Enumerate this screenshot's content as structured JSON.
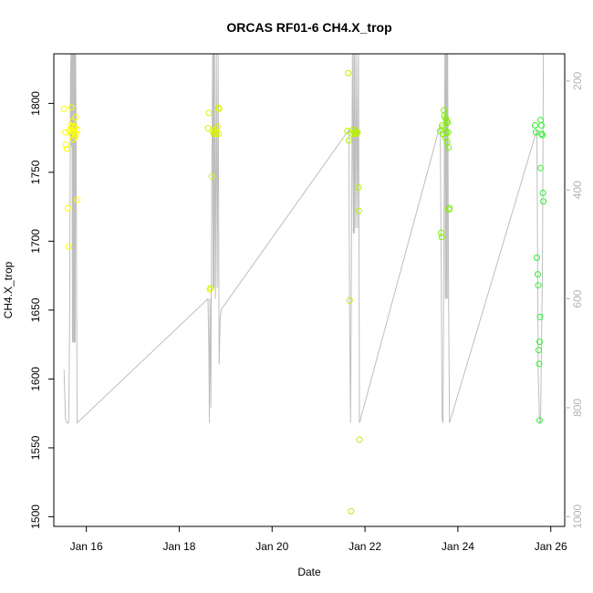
{
  "chart_data": {
    "type": "scatter",
    "title": "ORCAS RF01-6 CH4.X_trop",
    "xlabel": "Date",
    "ylabel": "CH4.X_trop",
    "x_ticks": [
      {
        "value": 16,
        "label": "Jan 16"
      },
      {
        "value": 18,
        "label": "Jan 18"
      },
      {
        "value": 20,
        "label": "Jan 20"
      },
      {
        "value": 22,
        "label": "Jan 22"
      },
      {
        "value": 24,
        "label": "Jan 24"
      },
      {
        "value": 26,
        "label": "Jan 26"
      }
    ],
    "y_ticks": [
      {
        "value": 1500,
        "label": "1500"
      },
      {
        "value": 1550,
        "label": "1550"
      },
      {
        "value": 1600,
        "label": "1600"
      },
      {
        "value": 1650,
        "label": "1650"
      },
      {
        "value": 1700,
        "label": "1700"
      },
      {
        "value": 1750,
        "label": "1750"
      },
      {
        "value": 1800,
        "label": "1800"
      }
    ],
    "y2_ticks": [
      {
        "value": 200,
        "label": "200"
      },
      {
        "value": 400,
        "label": "400"
      },
      {
        "value": 600,
        "label": "600"
      },
      {
        "value": 800,
        "label": "800"
      },
      {
        "value": 1000,
        "label": "1000"
      }
    ],
    "xlim": [
      15.3,
      26.3
    ],
    "ylim": [
      1493,
      1836
    ],
    "y2lim": [
      1018,
      150
    ],
    "colors": {
      "trace": "#bebebe",
      "right_axis": "#b3b3b3"
    },
    "pressure_trace": [
      [
        15.52,
        730
      ],
      [
        15.55,
        820
      ],
      [
        15.58,
        828
      ],
      [
        15.62,
        828
      ],
      [
        15.64,
        650
      ],
      [
        15.66,
        180
      ],
      [
        15.67,
        150
      ],
      [
        15.68,
        320
      ],
      [
        15.69,
        150
      ],
      [
        15.7,
        680
      ],
      [
        15.71,
        150
      ],
      [
        15.72,
        680
      ],
      [
        15.73,
        150
      ],
      [
        15.74,
        680
      ],
      [
        15.75,
        150
      ],
      [
        15.76,
        680
      ],
      [
        15.77,
        150
      ],
      [
        15.78,
        280
      ],
      [
        15.8,
        828
      ],
      [
        18.62,
        600
      ],
      [
        18.64,
        700
      ],
      [
        18.65,
        828
      ],
      [
        18.66,
        600
      ],
      [
        18.68,
        800
      ],
      [
        18.7,
        400
      ],
      [
        18.72,
        150
      ],
      [
        18.73,
        580
      ],
      [
        18.74,
        150
      ],
      [
        18.75,
        580
      ],
      [
        18.76,
        150
      ],
      [
        18.78,
        600
      ],
      [
        18.8,
        150
      ],
      [
        18.82,
        580
      ],
      [
        18.84,
        150
      ],
      [
        18.86,
        720
      ],
      [
        18.88,
        640
      ],
      [
        18.9,
        620
      ],
      [
        21.65,
        290
      ],
      [
        21.67,
        640
      ],
      [
        21.69,
        828
      ],
      [
        21.71,
        500
      ],
      [
        21.73,
        150
      ],
      [
        21.75,
        480
      ],
      [
        21.76,
        150
      ],
      [
        21.77,
        480
      ],
      [
        21.78,
        150
      ],
      [
        21.8,
        470
      ],
      [
        21.82,
        150
      ],
      [
        21.84,
        470
      ],
      [
        21.86,
        150
      ],
      [
        21.88,
        828
      ],
      [
        23.62,
        280
      ],
      [
        23.64,
        540
      ],
      [
        23.66,
        820
      ],
      [
        23.68,
        828
      ],
      [
        23.7,
        480
      ],
      [
        23.72,
        150
      ],
      [
        23.73,
        600
      ],
      [
        23.74,
        150
      ],
      [
        23.75,
        600
      ],
      [
        23.76,
        150
      ],
      [
        23.77,
        600
      ],
      [
        23.78,
        150
      ],
      [
        23.8,
        600
      ],
      [
        23.82,
        828
      ],
      [
        25.7,
        290
      ],
      [
        25.73,
        740
      ],
      [
        25.76,
        828
      ],
      [
        25.78,
        828
      ],
      [
        25.82,
        540
      ],
      [
        25.84,
        150
      ]
    ],
    "series": [
      {
        "color": "#ffff00",
        "points": [
          [
            15.52,
            1796
          ],
          [
            15.55,
            1779
          ],
          [
            15.56,
            1770
          ],
          [
            15.58,
            1767
          ],
          [
            15.6,
            1724
          ],
          [
            15.62,
            1696
          ],
          [
            15.64,
            1780
          ],
          [
            15.66,
            1781
          ],
          [
            15.66,
            1784
          ],
          [
            15.68,
            1778
          ],
          [
            15.68,
            1797
          ],
          [
            15.7,
            1783
          ],
          [
            15.7,
            1787
          ],
          [
            15.72,
            1780
          ],
          [
            15.72,
            1774
          ],
          [
            15.74,
            1782
          ],
          [
            15.74,
            1779
          ],
          [
            15.76,
            1776
          ],
          [
            15.76,
            1783
          ],
          [
            15.77,
            1790
          ],
          [
            15.78,
            1778
          ],
          [
            15.8,
            1730
          ],
          [
            15.8,
            1781
          ]
        ]
      },
      {
        "color": "#dbf200",
        "points": [
          [
            18.62,
            1782
          ],
          [
            18.64,
            1793
          ],
          [
            18.66,
            1665
          ],
          [
            18.68,
            1666
          ],
          [
            18.7,
            1747
          ],
          [
            18.72,
            1780
          ],
          [
            18.74,
            1778
          ],
          [
            18.76,
            1779
          ],
          [
            18.78,
            1781
          ],
          [
            18.8,
            1778
          ],
          [
            18.82,
            1783
          ],
          [
            18.84,
            1797
          ],
          [
            18.85,
            1778
          ],
          [
            18.86,
            1796
          ]
        ]
      },
      {
        "color": "#b7f200",
        "points": [
          [
            21.62,
            1780
          ],
          [
            21.64,
            1822
          ],
          [
            21.65,
            1773
          ],
          [
            21.67,
            1657
          ],
          [
            21.7,
            1504
          ],
          [
            21.72,
            1778
          ],
          [
            21.74,
            1781
          ],
          [
            21.76,
            1779
          ],
          [
            21.78,
            1778
          ],
          [
            21.8,
            1780
          ],
          [
            21.82,
            1778
          ],
          [
            21.84,
            1779
          ],
          [
            21.86,
            1739
          ],
          [
            21.87,
            1722
          ],
          [
            21.88,
            1556
          ]
        ]
      },
      {
        "color": "#7ff000",
        "points": [
          [
            23.62,
            1780
          ],
          [
            23.64,
            1706
          ],
          [
            23.65,
            1703
          ],
          [
            23.66,
            1784
          ],
          [
            23.68,
            1778
          ],
          [
            23.7,
            1795
          ],
          [
            23.71,
            1791
          ],
          [
            23.72,
            1783
          ],
          [
            23.73,
            1775
          ],
          [
            23.74,
            1789
          ],
          [
            23.75,
            1779
          ],
          [
            23.76,
            1787
          ],
          [
            23.77,
            1772
          ],
          [
            23.78,
            1786
          ],
          [
            23.79,
            1779
          ],
          [
            23.8,
            1768
          ],
          [
            23.81,
            1723
          ],
          [
            23.82,
            1724
          ]
        ]
      },
      {
        "color": "#33ee33",
        "points": [
          [
            25.66,
            1784
          ],
          [
            25.68,
            1779
          ],
          [
            25.7,
            1688
          ],
          [
            25.72,
            1676
          ],
          [
            25.73,
            1668
          ],
          [
            25.74,
            1621
          ],
          [
            25.75,
            1611
          ],
          [
            25.76,
            1627
          ],
          [
            25.76,
            1570
          ],
          [
            25.77,
            1645
          ],
          [
            25.78,
            1753
          ],
          [
            25.78,
            1788
          ],
          [
            25.8,
            1784
          ],
          [
            25.8,
            1778
          ],
          [
            25.82,
            1777
          ],
          [
            25.83,
            1735
          ],
          [
            25.84,
            1729
          ]
        ]
      }
    ]
  }
}
